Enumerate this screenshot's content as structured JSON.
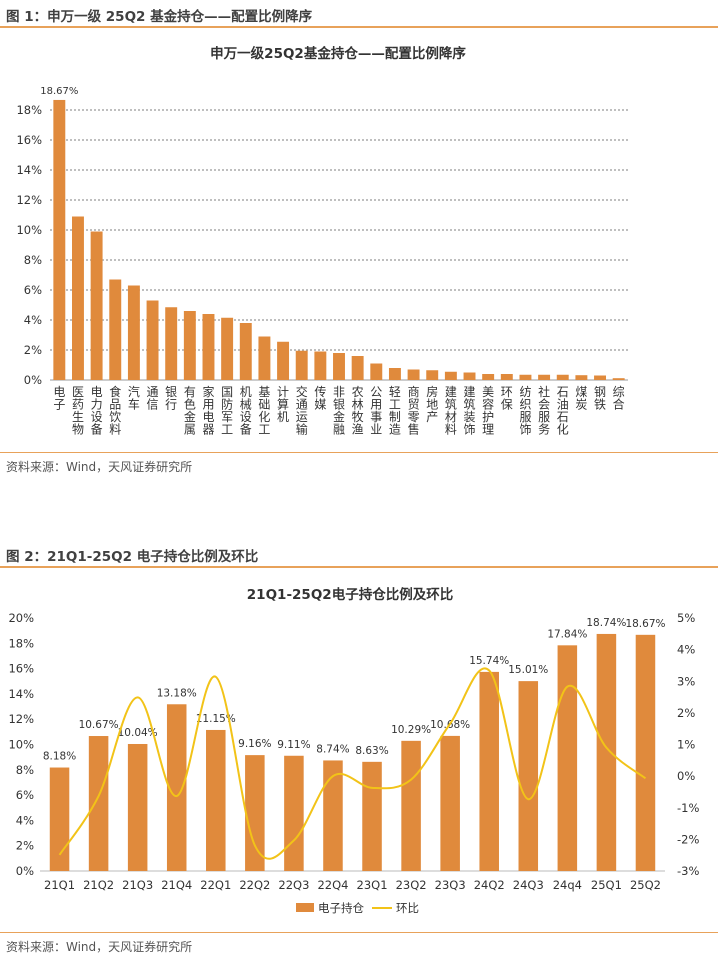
{
  "fig1": {
    "header": "图 1：申万一级 25Q2 基金持仓——配置比例降序",
    "source": "资料来源：Wind，天风证券研究所",
    "chart_data": {
      "type": "bar",
      "title": "申万一级25Q2基金持仓——配置比例降序",
      "categories": [
        "电子",
        "医药生物",
        "电力设备",
        "食品饮料",
        "汽车",
        "通信",
        "银行",
        "有色金属",
        "家用电器",
        "国防军工",
        "机械设备",
        "基础化工",
        "计算机",
        "交通运输",
        "传媒",
        "非银金融",
        "农林牧渔",
        "公用事业",
        "轻工制造",
        "商贸零售",
        "房地产",
        "建筑材料",
        "建筑装饰",
        "美容护理",
        "环保",
        "纺织服饰",
        "社会服务",
        "石油石化",
        "煤炭",
        "钢铁",
        "综合"
      ],
      "values": [
        18.67,
        10.9,
        9.9,
        6.7,
        6.3,
        5.3,
        4.85,
        4.6,
        4.4,
        4.15,
        3.8,
        2.9,
        2.55,
        1.95,
        1.9,
        1.8,
        1.6,
        1.1,
        0.8,
        0.7,
        0.65,
        0.55,
        0.5,
        0.4,
        0.4,
        0.35,
        0.35,
        0.35,
        0.32,
        0.3,
        0.12
      ],
      "data_labels": {
        "0": "18.67%"
      },
      "yticks": [
        "0%",
        "2%",
        "4%",
        "6%",
        "8%",
        "10%",
        "12%",
        "14%",
        "16%",
        "18%"
      ],
      "ylim": [
        0,
        19
      ],
      "grid": true,
      "bar_color": "#e08a3c"
    }
  },
  "fig2": {
    "header": "图 2：21Q1-25Q2 电子持仓比例及环比",
    "source": "资料来源：Wind，天风证券研究所",
    "chart_data": {
      "type": "bar",
      "title": "21Q1-25Q2电子持仓比例及环比",
      "categories": [
        "21Q1",
        "21Q2",
        "21Q3",
        "21Q4",
        "22Q1",
        "22Q2",
        "22Q3",
        "22Q4",
        "23Q1",
        "23Q2",
        "23Q3",
        "24Q2",
        "24Q3",
        "24q4",
        "25Q1",
        "25Q2"
      ],
      "series": [
        {
          "name": "电子持仓",
          "type": "bar",
          "axis": "left",
          "color": "#e08a3c",
          "values": [
            8.18,
            10.67,
            10.04,
            13.18,
            11.15,
            9.16,
            9.11,
            8.74,
            8.63,
            10.29,
            10.68,
            15.74,
            15.01,
            17.84,
            18.74,
            18.67
          ],
          "labels": [
            "8.18%",
            "10.67%",
            "10.04%",
            "13.18%",
            "11.15%",
            "9.16%",
            "9.11%",
            "8.74%",
            "8.63%",
            "10.29%",
            "10.68%",
            "15.74%",
            "15.01%",
            "17.84%",
            "18.74%",
            "18.67%"
          ]
        },
        {
          "name": "环比",
          "type": "line",
          "axis": "right",
          "color": "#f2c318",
          "values": [
            -2.49,
            -0.63,
            2.49,
            -0.63,
            3.14,
            -2.19,
            -2.03,
            0.0,
            -0.37,
            -0.11,
            1.66,
            3.34,
            -0.73,
            2.83,
            0.9,
            -0.07
          ]
        }
      ],
      "yticks_left": [
        "0%",
        "2%",
        "4%",
        "6%",
        "8%",
        "10%",
        "12%",
        "14%",
        "16%",
        "18%",
        "20%"
      ],
      "yticks_right": [
        "-3%",
        "-2%",
        "-1%",
        "0%",
        "1%",
        "2%",
        "3%",
        "4%",
        "5%"
      ],
      "ylim_left": [
        0,
        20
      ],
      "ylim_right": [
        -3,
        5
      ],
      "legend": "bottom",
      "grid": false
    }
  }
}
